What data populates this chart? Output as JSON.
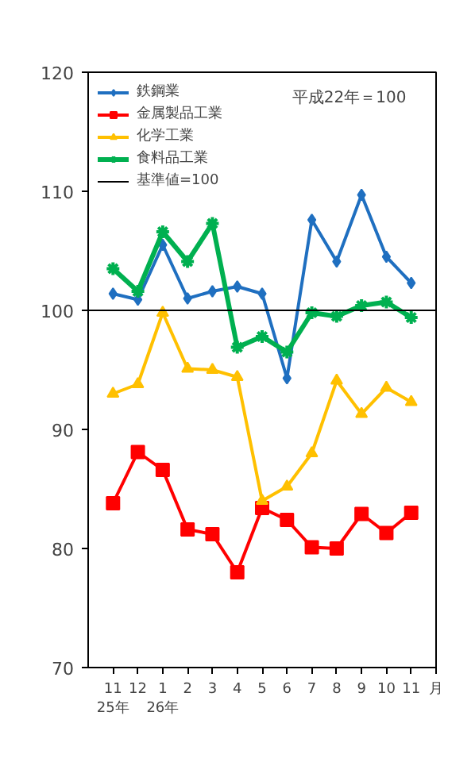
{
  "chart_data": {
    "type": "line",
    "categories": [
      "11",
      "12",
      "1",
      "2",
      "3",
      "4",
      "5",
      "6",
      "7",
      "8",
      "9",
      "10",
      "11"
    ],
    "series": [
      {
        "name": "鉄鋼業",
        "color": "#1f6fc0",
        "marker": "diamond",
        "values": [
          101.4,
          100.9,
          105.5,
          101.0,
          101.6,
          102.0,
          101.4,
          94.3,
          107.6,
          104.1,
          109.7,
          104.5,
          102.3
        ]
      },
      {
        "name": "金属製品工業",
        "color": "#ff0000",
        "marker": "square",
        "values": [
          83.8,
          88.1,
          86.6,
          81.6,
          81.2,
          78.0,
          83.4,
          82.4,
          80.1,
          80.0,
          82.9,
          81.3,
          83.0
        ]
      },
      {
        "name": "化学工業",
        "color": "#ffc000",
        "marker": "triangle",
        "values": [
          93.0,
          93.8,
          99.8,
          95.1,
          95.0,
          94.4,
          84.0,
          85.2,
          88.0,
          94.1,
          91.3,
          93.5,
          92.3
        ]
      },
      {
        "name": "食料品工業",
        "color": "#00b050",
        "marker": "cross",
        "values": [
          103.5,
          101.6,
          106.6,
          104.1,
          107.3,
          96.9,
          97.8,
          96.5,
          99.8,
          99.5,
          100.4,
          100.7,
          99.4
        ]
      }
    ],
    "ref_lines": [
      {
        "axis": "y",
        "value": 100,
        "label": "基準値=100",
        "color": "#000000"
      }
    ],
    "ylim": [
      70,
      120
    ],
    "yticks": [
      70,
      80,
      90,
      100,
      110,
      120
    ],
    "annotations": [
      "平成22年＝100",
      "25年",
      "26年",
      "月"
    ],
    "grid": false,
    "legend": "top left"
  }
}
